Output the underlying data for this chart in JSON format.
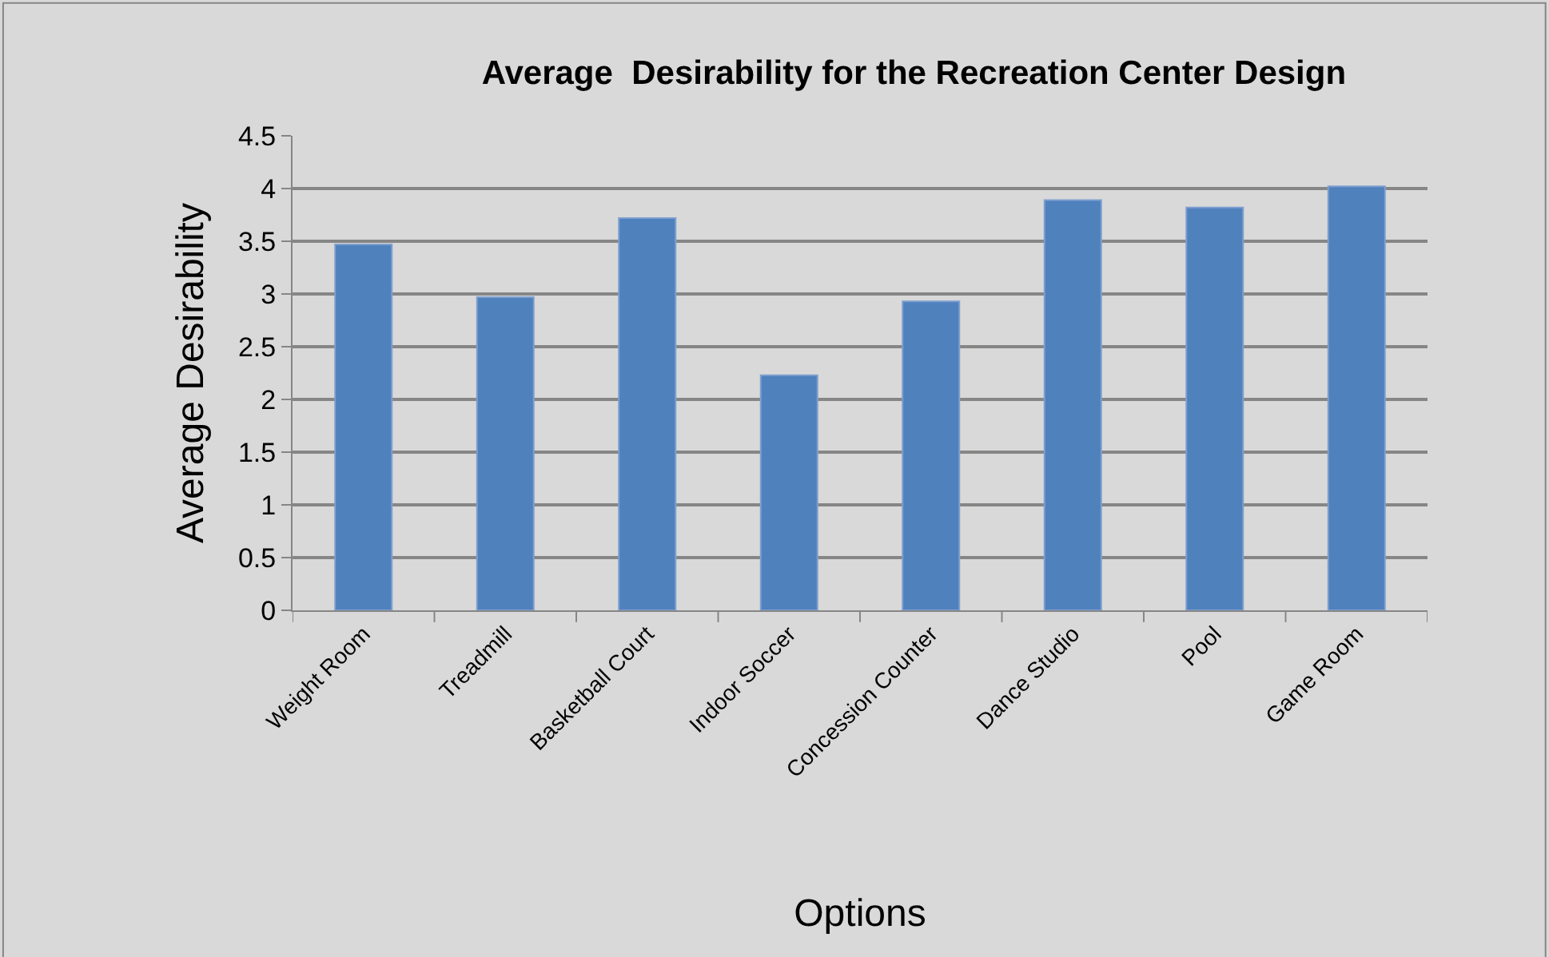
{
  "chart_data": {
    "type": "bar",
    "title": "Average  Desirability for the Recreation Center Design",
    "xlabel": "Options",
    "ylabel": "Average Desirability",
    "categories": [
      "Weight Room",
      "Treadmill",
      "Basketball Court",
      "Indoor Soccer",
      "Concession Counter",
      "Dance Studio",
      "Pool",
      "Game Room"
    ],
    "values": [
      3.47,
      2.97,
      3.72,
      2.23,
      2.93,
      3.89,
      3.82,
      4.02
    ],
    "color": "#4f81bd",
    "ylim": [
      0,
      4.5
    ],
    "yticks": [
      0,
      0.5,
      1,
      1.5,
      2,
      2.5,
      3,
      3.5,
      4,
      4.5
    ],
    "grid": "y",
    "legend": false
  }
}
